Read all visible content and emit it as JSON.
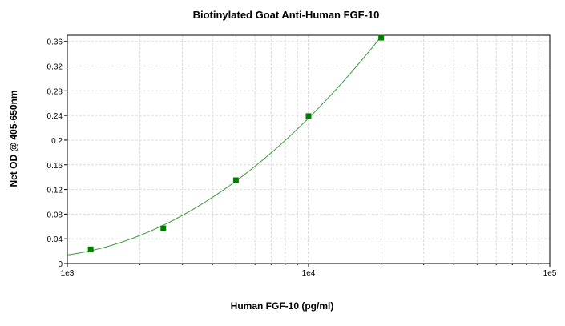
{
  "chart_data": {
    "type": "scatter",
    "title": "Biotinylated Goat Anti-Human FGF-10",
    "xlabel": "Human FGF-10 (pg/ml)",
    "ylabel": "Net OD @ 405-650nm",
    "x_scale": "log",
    "xlim": [
      1000,
      100000
    ],
    "ylim": [
      0,
      0.37
    ],
    "x_ticks": [
      1000,
      10000,
      100000
    ],
    "x_tick_labels": [
      "1e3",
      "1e4",
      "1e5"
    ],
    "y_ticks": [
      0,
      0.04,
      0.08,
      0.12,
      0.16,
      0.2,
      0.24,
      0.28,
      0.32,
      0.36
    ],
    "y_tick_labels": [
      "0",
      "0.04",
      "0.08",
      "0.12",
      "0.16",
      "0.2",
      "0.24",
      "0.28",
      "0.32",
      "0.36"
    ],
    "grid": true,
    "series": [
      {
        "marker": "square",
        "color": "#008000",
        "x": [
          1250,
          2500,
          5000,
          10000,
          20000
        ],
        "y": [
          0.023,
          0.057,
          0.135,
          0.239,
          0.366
        ]
      }
    ],
    "fit_curve": {
      "color": "#3a9a3a",
      "type": "smooth"
    }
  }
}
